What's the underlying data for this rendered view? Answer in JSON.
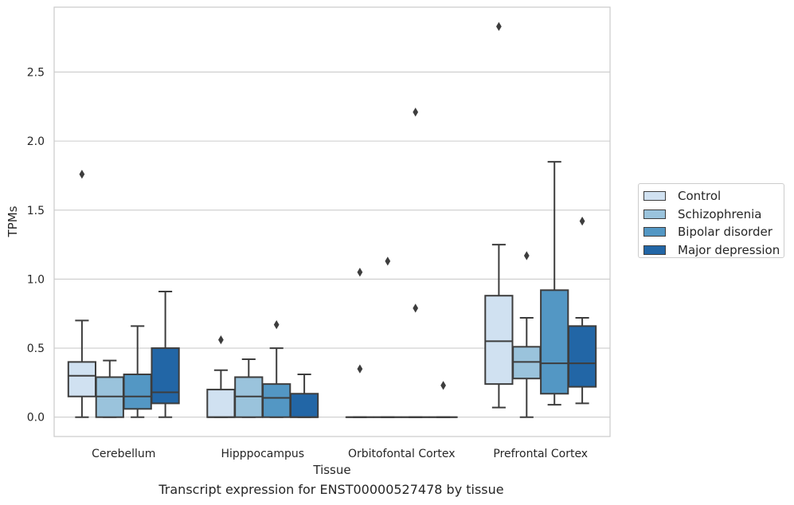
{
  "chart_data": {
    "type": "box",
    "xlabel": "Tissue",
    "ylabel": "TPMs",
    "caption": "Transcript expression for ENST00000527478 by tissue",
    "ylim": [
      -0.14,
      2.97
    ],
    "yticks": [
      "0.0",
      "0.5",
      "1.0",
      "1.5",
      "2.0",
      "2.5"
    ],
    "categories": [
      "Cerebellum",
      "Hipppocampus",
      "Orbitofontal Cortex",
      "Prefrontal Cortex"
    ],
    "grid": "horizontal",
    "legend_position": "right",
    "series": [
      {
        "name": "Control",
        "color": "#d0e1f1",
        "boxes": [
          {
            "whislo": 0.0,
            "q1": 0.15,
            "med": 0.3,
            "q3": 0.4,
            "whishi": 0.7,
            "fliers": [
              1.76
            ]
          },
          {
            "whislo": 0.0,
            "q1": 0.0,
            "med": 0.0,
            "q3": 0.2,
            "whishi": 0.34,
            "fliers": [
              0.56
            ]
          },
          {
            "whislo": 0.0,
            "q1": 0.0,
            "med": 0.0,
            "q3": 0.0,
            "whishi": 0.0,
            "fliers": [
              0.35,
              1.05
            ]
          },
          {
            "whislo": 0.07,
            "q1": 0.24,
            "med": 0.55,
            "q3": 0.88,
            "whishi": 1.25,
            "fliers": [
              2.83
            ]
          }
        ]
      },
      {
        "name": "Schizophrenia",
        "color": "#9ac3dc",
        "boxes": [
          {
            "whislo": 0.0,
            "q1": 0.0,
            "med": 0.15,
            "q3": 0.29,
            "whishi": 0.41,
            "fliers": []
          },
          {
            "whislo": 0.0,
            "q1": 0.0,
            "med": 0.15,
            "q3": 0.29,
            "whishi": 0.42,
            "fliers": []
          },
          {
            "whislo": 0.0,
            "q1": 0.0,
            "med": 0.0,
            "q3": 0.0,
            "whishi": 0.0,
            "fliers": [
              1.13
            ]
          },
          {
            "whislo": 0.0,
            "q1": 0.28,
            "med": 0.4,
            "q3": 0.51,
            "whishi": 0.72,
            "fliers": [
              1.17
            ]
          }
        ]
      },
      {
        "name": "Bipolar disorder",
        "color": "#5397c4",
        "boxes": [
          {
            "whislo": 0.0,
            "q1": 0.06,
            "med": 0.15,
            "q3": 0.31,
            "whishi": 0.66,
            "fliers": []
          },
          {
            "whislo": 0.0,
            "q1": 0.0,
            "med": 0.14,
            "q3": 0.24,
            "whishi": 0.5,
            "fliers": [
              0.67
            ]
          },
          {
            "whislo": 0.0,
            "q1": 0.0,
            "med": 0.0,
            "q3": 0.0,
            "whishi": 0.0,
            "fliers": [
              0.79,
              2.21
            ]
          },
          {
            "whislo": 0.09,
            "q1": 0.17,
            "med": 0.39,
            "q3": 0.92,
            "whishi": 1.85,
            "fliers": []
          }
        ]
      },
      {
        "name": "Major depression",
        "color": "#2266a6",
        "boxes": [
          {
            "whislo": 0.0,
            "q1": 0.1,
            "med": 0.18,
            "q3": 0.5,
            "whishi": 0.91,
            "fliers": []
          },
          {
            "whislo": 0.0,
            "q1": 0.0,
            "med": 0.0,
            "q3": 0.17,
            "whishi": 0.31,
            "fliers": []
          },
          {
            "whislo": 0.0,
            "q1": 0.0,
            "med": 0.0,
            "q3": 0.0,
            "whishi": 0.0,
            "fliers": [
              0.23
            ]
          },
          {
            "whislo": 0.1,
            "q1": 0.22,
            "med": 0.39,
            "q3": 0.66,
            "whishi": 0.72,
            "fliers": [
              1.42
            ]
          }
        ]
      }
    ]
  }
}
